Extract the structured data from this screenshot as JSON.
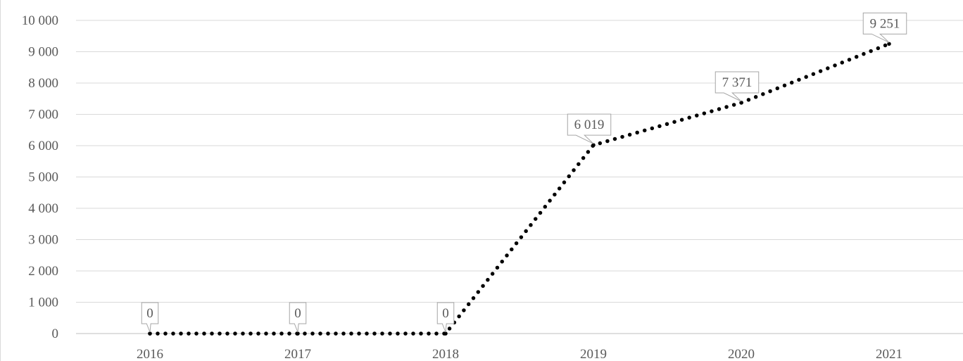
{
  "chart_data": {
    "type": "line",
    "title": "",
    "xlabel": "",
    "ylabel": "",
    "x": [
      "2016",
      "2017",
      "2018",
      "2019",
      "2020",
      "2021"
    ],
    "series": [
      {
        "values": [
          0,
          0,
          0,
          6019,
          7371,
          9251
        ],
        "labels": [
          "0",
          "0",
          "0",
          "6 019",
          "7 371",
          "9 251"
        ],
        "color": "#000000",
        "line_style": "dotted"
      }
    ],
    "ylim": [
      0,
      10000
    ],
    "y_ticks": [
      0,
      1000,
      2000,
      3000,
      4000,
      5000,
      6000,
      7000,
      8000,
      9000,
      10000
    ],
    "y_tick_labels": [
      "0",
      "1 000",
      "2 000",
      "3 000",
      "4 000",
      "5 000",
      "6 000",
      "7 000",
      "8 000",
      "9 000",
      "10 000"
    ],
    "grid": true,
    "legend": "none",
    "colors": {
      "grid": "#d9d9d9",
      "axis": "#bfbfbf",
      "text": "#595959",
      "label_border": "#a6a6a6"
    }
  }
}
